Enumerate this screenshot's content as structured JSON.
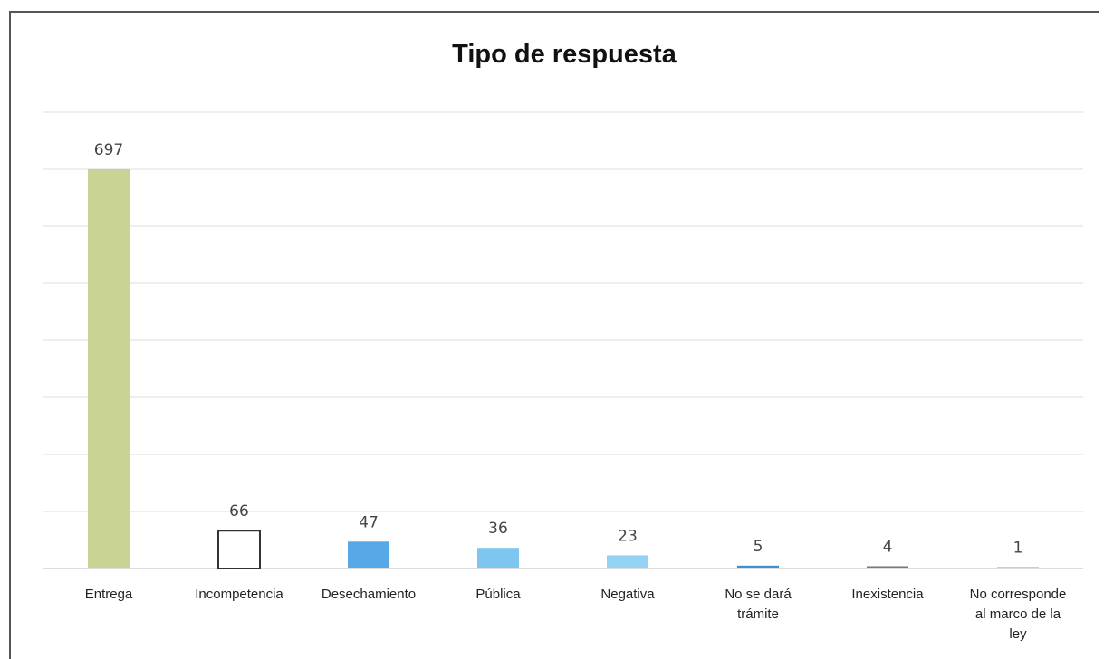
{
  "chart_data": {
    "type": "bar",
    "title": "Tipo de respuesta",
    "categories": [
      [
        "Entrega"
      ],
      [
        "Incompetencia"
      ],
      [
        "Desechamiento"
      ],
      [
        "Pública"
      ],
      [
        "Negativa"
      ],
      [
        "No se dará",
        "trámite"
      ],
      [
        "Inexistencia"
      ],
      [
        "No corresponde",
        "al marco de la",
        "ley"
      ]
    ],
    "values": [
      697,
      66,
      47,
      36,
      23,
      5,
      4,
      1
    ],
    "colors": [
      "#c9d494",
      "#ffffff",
      "#56a9e6",
      "#7ec5f0",
      "#92d2f4",
      "#3e8fd6",
      "#7a7a7a",
      "#9a9a9a"
    ],
    "ylim": [
      0,
      700
    ],
    "grid": true,
    "legend": "none"
  }
}
